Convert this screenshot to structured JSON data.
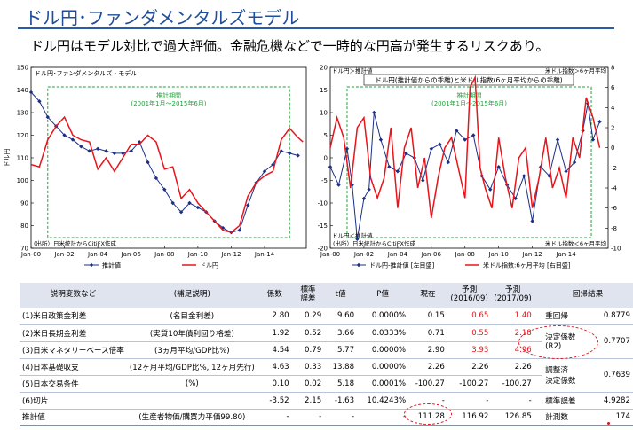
{
  "header": {
    "title": "ドル円･ファンダメンタルズモデル",
    "subtitle": "ドル円はモデル対比で過大評価。金融危機などで一時的な円高が発生するリスクあり。"
  },
  "colors": {
    "estimate": "#1c2f86",
    "actual": "#e8141b",
    "period_box": "#22a23a",
    "title": "#1f4e9a"
  },
  "chart_data": [
    {
      "type": "line",
      "title": "ドル円･ファンダメンタルズ・モデル",
      "ylabel": "ドル円",
      "xlim": [
        2000.0,
        2016.5
      ],
      "ylim": [
        70,
        150
      ],
      "yticks": [
        70,
        80,
        90,
        100,
        110,
        120,
        130,
        140,
        150
      ],
      "xticks": [
        2000,
        2002,
        2004,
        2006,
        2008,
        2010,
        2012,
        2014
      ],
      "xtick_labels": [
        "Jan-00",
        "Jan-02",
        "Jan-04",
        "Jan-06",
        "Jan-08",
        "Jan-10",
        "Jan-12",
        "Jan-14"
      ],
      "grid": false,
      "annotation": "推計期間\n(2001年1月～2015年6月)",
      "annotation_lines": [
        "推計期間",
        "(2001年1月～2015年6月)"
      ],
      "period": [
        2001.0,
        2015.5
      ],
      "source": "(出所）日米統計からCitiFX作成",
      "legend_position": "bottom",
      "series": [
        {
          "name": "推計値",
          "style": "line-diamond",
          "x": [
            2000.0,
            2000.5,
            2001.0,
            2001.5,
            2002.0,
            2002.5,
            2003.0,
            2003.5,
            2004.0,
            2004.5,
            2005.0,
            2005.5,
            2006.0,
            2006.5,
            2007.0,
            2007.5,
            2008.0,
            2008.5,
            2009.0,
            2009.5,
            2010.0,
            2010.5,
            2011.0,
            2011.5,
            2012.0,
            2012.5,
            2013.0,
            2013.5,
            2014.0,
            2014.5,
            2015.0,
            2015.5,
            2016.0
          ],
          "y": [
            139,
            135,
            128,
            124,
            120,
            118,
            115,
            113,
            114,
            113,
            112,
            112,
            113,
            117,
            108,
            101,
            96,
            90,
            86,
            90,
            88,
            86,
            82,
            79,
            77,
            78,
            89,
            99,
            104,
            107,
            113,
            112,
            111
          ]
        },
        {
          "name": "ドル円",
          "x": [
            2000.0,
            2000.5,
            2001.0,
            2001.5,
            2002.0,
            2002.5,
            2003.0,
            2003.5,
            2004.0,
            2004.5,
            2005.0,
            2005.5,
            2006.0,
            2006.5,
            2007.0,
            2007.5,
            2008.0,
            2008.5,
            2009.0,
            2009.5,
            2010.0,
            2010.5,
            2011.0,
            2011.5,
            2012.0,
            2012.5,
            2013.0,
            2013.5,
            2014.0,
            2014.5,
            2015.0,
            2015.5,
            2016.0,
            2016.3
          ],
          "y": [
            107,
            106,
            118,
            124,
            128,
            120,
            118,
            117,
            105,
            110,
            104,
            110,
            116,
            116,
            120,
            117,
            105,
            106,
            92,
            96,
            90,
            86,
            82,
            78,
            77,
            80,
            93,
            99,
            102,
            104,
            118,
            123,
            119,
            117
          ]
        }
      ]
    },
    {
      "type": "line",
      "title": "ドル円(推計値からの乖離)と米ドル指数(6ヶ月平均からの乖離)",
      "ylim_left": [
        -20,
        20
      ],
      "ylim_right": [
        -10,
        8
      ],
      "yticks_left": [
        -20,
        -15,
        -10,
        -5,
        0,
        5,
        10,
        15,
        20
      ],
      "yticks_right": [
        -10,
        -8,
        -6,
        -4,
        -2,
        0,
        2,
        4,
        6,
        8
      ],
      "xlim": [
        2000.0,
        2016.5
      ],
      "xticks": [
        2000,
        2002,
        2004,
        2006,
        2008,
        2010,
        2012,
        2014
      ],
      "xtick_labels": [
        "Jan-00",
        "Jan-02",
        "Jan-04",
        "Jan-06",
        "Jan-08",
        "Jan-10",
        "Jan-12",
        "Jan-14"
      ],
      "grid": false,
      "corner_labels": [
        "ドル円＞推計値",
        "ドル円＜推計値",
        "米ドル指数＞6ヶ月平均",
        "米ドル指数＜6ヶ月平均"
      ],
      "annotation": "推計期間\n(2001年1月～2015年6月)",
      "annotation_lines": [
        "推計期間",
        "(2001年1月～2015年6月)"
      ],
      "period": [
        2001.0,
        2015.5
      ],
      "source": "(出所）日米統計からCitiFX作成",
      "legend_position": "bottom",
      "series": [
        {
          "name": "ドル円-推計値 [左目盛]",
          "style": "line-diamond",
          "axis": "left",
          "x": [
            2000.0,
            2000.5,
            2001.0,
            2001.3,
            2001.6,
            2002.0,
            2002.3,
            2002.6,
            2003.0,
            2003.5,
            2004.0,
            2004.5,
            2005.0,
            2005.5,
            2006.0,
            2006.5,
            2007.0,
            2007.5,
            2008.0,
            2008.5,
            2009.0,
            2009.5,
            2010.0,
            2010.5,
            2011.0,
            2011.5,
            2012.0,
            2012.5,
            2013.0,
            2013.5,
            2014.0,
            2014.5,
            2015.0,
            2015.3,
            2015.6,
            2016.0
          ],
          "y": [
            -2,
            -6,
            2,
            -6,
            -18,
            -9,
            -7,
            10,
            4,
            -2,
            -3,
            1,
            0,
            -5,
            2,
            3,
            -1,
            6,
            4,
            5,
            -4,
            -7,
            -2,
            -6,
            -9,
            -4,
            -14,
            -2,
            -4,
            4,
            -3,
            -1,
            6,
            12,
            4,
            8
          ]
        },
        {
          "name": "米ドル指数:6ヶ月平均 [右目盛]",
          "axis": "right",
          "x": [
            2000.0,
            2000.4,
            2000.8,
            2001.2,
            2001.6,
            2002.0,
            2002.4,
            2002.8,
            2003.2,
            2003.6,
            2004.0,
            2004.4,
            2004.8,
            2005.2,
            2005.6,
            2006.0,
            2006.4,
            2006.8,
            2007.2,
            2007.6,
            2008.0,
            2008.3,
            2008.6,
            2008.9,
            2009.2,
            2009.6,
            2010.0,
            2010.4,
            2010.8,
            2011.2,
            2011.6,
            2012.0,
            2012.4,
            2012.8,
            2013.2,
            2013.6,
            2014.0,
            2014.4,
            2014.8,
            2015.2,
            2015.6,
            2016.0
          ],
          "y": [
            0,
            3,
            1,
            -4,
            2,
            3,
            -3,
            -5,
            -3,
            2,
            -6,
            0,
            2,
            -4,
            -1,
            -7,
            -3,
            0,
            1,
            -2,
            -5,
            6,
            7,
            -2,
            -4,
            -6,
            1,
            -3,
            -6,
            -1,
            0,
            -6,
            -3,
            1,
            -4,
            -2,
            -5,
            1,
            -1,
            5,
            3,
            0
          ]
        }
      ]
    }
  ],
  "legend_left": {
    "estimate": "推計値",
    "actual": "ドル円"
  },
  "legend_right": {
    "estimate": "ドル円-推計値 [左目盛]",
    "actual": "米ドル指数:6ヶ月平均 [右目盛]"
  },
  "table": {
    "headers": {
      "name": "説明変数など",
      "note": "(補足説明)",
      "coef": "係数",
      "se_line1": "標準",
      "se_line2": "誤差",
      "t": "t値",
      "p": "P値",
      "now": "現在",
      "f1_line1": "予測",
      "f1_line2": "(2016/09)",
      "f2_line1": "予測",
      "f2_line2": "(2017/09)",
      "result": "回帰結果"
    },
    "rows": [
      {
        "name": "(1)米日政策金利差",
        "note": "(名目金利差)",
        "coef": "2.80",
        "se": "0.29",
        "t": "9.60",
        "p": "0.0000%",
        "now": "0.15",
        "f1": "0.65",
        "f2": "1.40"
      },
      {
        "name": "(2)米日長期金利差",
        "note": "(実質10年債利回り格差)",
        "coef": "1.92",
        "se": "0.52",
        "t": "3.66",
        "p": "0.0333%",
        "now": "0.71",
        "f1": "0.55",
        "f2": "2.18"
      },
      {
        "name": "(3)日米マネタリーベース倍率",
        "note": "(3ヵ月平均/GDP比%)",
        "coef": "4.54",
        "se": "0.79",
        "t": "5.77",
        "p": "0.0000%",
        "now": "2.90",
        "f1": "3.93",
        "f2": "4.96"
      },
      {
        "name": "(4)日本基礎収支",
        "note": "(12ヶ月平均/GDP比%, 12ヶ月先行)",
        "coef": "4.63",
        "se": "0.33",
        "t": "13.88",
        "p": "0.0000%",
        "now": "2.26",
        "f1": "2.26",
        "f2": "2.26"
      },
      {
        "name": "(5)日本交易条件",
        "note": "(%)",
        "coef": "0.10",
        "se": "0.02",
        "se_fix": "",
        "t": "5.18",
        "p": "0.0001%",
        "now": "-100.27",
        "f1": "-100.27",
        "f2": "-100.27"
      },
      {
        "name": "(6)切片",
        "note": "",
        "coef": "-3.52",
        "se": "2.15",
        "t": "-1.63",
        "p": "10.4243%",
        "now": "-",
        "f1": "-",
        "f2": "-"
      },
      {
        "name": "推計値",
        "note": "(生産者物価/購買力平価99.80)",
        "coef": "-",
        "se": "-",
        "t": "-",
        "p": "-",
        "now": "111.28",
        "f1": "116.92",
        "f2": "126.85"
      }
    ],
    "results": [
      {
        "label": "重回帰",
        "value": "0.8779"
      },
      {
        "label": "決定係数 (R2)",
        "label_line1": "決定係数",
        "label_line2": "(R2)",
        "value": "0.7707"
      },
      {
        "label": "調整済 決定係数",
        "label_line1": "調整済",
        "label_line2": "決定係数",
        "value": "0.7639"
      },
      {
        "label": "標準誤差",
        "value": "4.9282"
      },
      {
        "label": "計測数",
        "value": "174"
      }
    ]
  }
}
